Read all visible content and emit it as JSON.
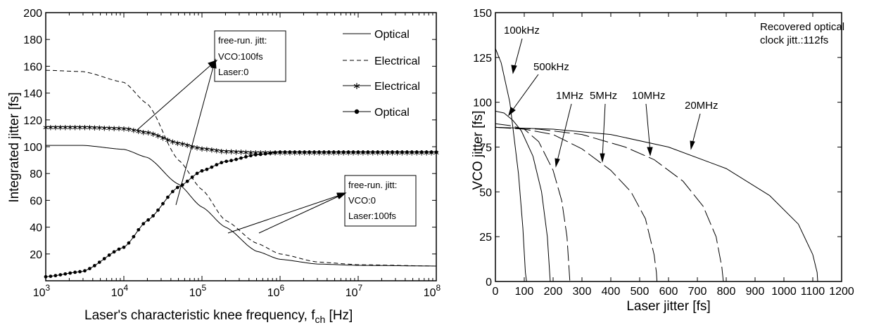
{
  "chart_data": [
    {
      "type": "line",
      "xlabel": "Laser's characteristic knee frequency, f",
      "xlabel_sub": "ch",
      "xlabel_unit": " [Hz]",
      "ylabel": "Integrated jitter [fs]",
      "x_scale": "log",
      "xlim": [
        1000,
        100000000
      ],
      "ylim": [
        0,
        200
      ],
      "x_tick_values": [
        1000,
        10000,
        100000,
        1000000,
        10000000,
        100000000
      ],
      "x_tick_labels": [
        {
          "base": "10",
          "exp": "3"
        },
        {
          "base": "10",
          "exp": "4"
        },
        {
          "base": "10",
          "exp": "5"
        },
        {
          "base": "10",
          "exp": "6"
        },
        {
          "base": "10",
          "exp": "7"
        },
        {
          "base": "10",
          "exp": "8"
        }
      ],
      "y_ticks": [
        20,
        40,
        60,
        80,
        100,
        120,
        140,
        160,
        180,
        200
      ],
      "legend_position": "top-right",
      "series": [
        {
          "name": "Optical",
          "style": "solid",
          "x": [
            1000,
            3000,
            10000,
            20000,
            50000,
            100000,
            200000,
            500000,
            1000000,
            3000000,
            10000000,
            100000000
          ],
          "y": [
            101,
            101,
            98,
            92,
            72,
            55,
            40,
            22,
            16,
            12.5,
            11.5,
            11
          ]
        },
        {
          "name": "Electrical",
          "style": "dashed",
          "x": [
            1000,
            3000,
            10000,
            20000,
            50000,
            100000,
            200000,
            500000,
            1000000,
            3000000,
            10000000,
            100000000
          ],
          "y": [
            157,
            156,
            148,
            132,
            90,
            68,
            45,
            28,
            20,
            14,
            12,
            11
          ]
        },
        {
          "name": "Electrical",
          "style": "solid-star",
          "x": [
            1000,
            3000,
            10000,
            20000,
            50000,
            100000,
            200000,
            500000,
            1000000,
            10000000,
            100000000
          ],
          "y": [
            115,
            115,
            114,
            111,
            103,
            99,
            97,
            96,
            96,
            96,
            96
          ]
        },
        {
          "name": "Optical",
          "style": "solid-dot",
          "x": [
            1000,
            3000,
            10000,
            20000,
            50000,
            100000,
            200000,
            500000,
            1000000,
            10000000,
            100000000
          ],
          "y": [
            3,
            7,
            25,
            45,
            70,
            82,
            89,
            94,
            96,
            96,
            96
          ]
        }
      ],
      "annotations": [
        {
          "lines": [
            "free-run. jitt:",
            "VCO:100fs",
            "Laser:0"
          ]
        },
        {
          "lines": [
            "free-run. jitt:",
            "VCO:0",
            "Laser:100fs"
          ]
        }
      ]
    },
    {
      "type": "line",
      "xlabel": "Laser jitter [fs]",
      "ylabel": "VCO jitter [fs]",
      "xlim": [
        0,
        1200
      ],
      "ylim": [
        0,
        150
      ],
      "x_ticks": [
        0,
        100,
        200,
        300,
        400,
        500,
        600,
        700,
        800,
        900,
        1000,
        1100,
        1200
      ],
      "y_ticks": [
        0,
        25,
        50,
        75,
        100,
        125,
        150
      ],
      "annotation": [
        "Recovered optical",
        "clock jitt.:112fs"
      ],
      "series": [
        {
          "label": "100kHz",
          "style": "solid",
          "x": [
            0,
            20,
            50,
            80,
            95,
            104,
            108
          ],
          "y": [
            130,
            122,
            100,
            60,
            30,
            5,
            0
          ]
        },
        {
          "label": "500kHz",
          "style": "solid",
          "x": [
            0,
            30,
            60,
            90,
            130,
            160,
            180,
            188,
            190
          ],
          "y": [
            95,
            94,
            90,
            84,
            70,
            50,
            25,
            5,
            0
          ]
        },
        {
          "label": "1MHz",
          "style": "dash-long",
          "x": [
            0,
            50,
            100,
            150,
            200,
            230,
            248,
            256,
            258
          ],
          "y": [
            88,
            87,
            85,
            78,
            62,
            45,
            25,
            5,
            0
          ]
        },
        {
          "label": "5MHz",
          "style": "dash-long",
          "x": [
            0,
            100,
            200,
            300,
            400,
            470,
            520,
            550,
            558,
            560
          ],
          "y": [
            86,
            85,
            82,
            74,
            62,
            50,
            35,
            15,
            5,
            0
          ]
        },
        {
          "label": "10MHz",
          "style": "dash-long",
          "x": [
            0,
            150,
            300,
            450,
            550,
            650,
            720,
            765,
            785,
            790
          ],
          "y": [
            86,
            85,
            82,
            75,
            68,
            56,
            42,
            25,
            8,
            0
          ]
        },
        {
          "label": "20MHz",
          "style": "solid",
          "x": [
            0,
            200,
            400,
            600,
            800,
            950,
            1050,
            1100,
            1115,
            1117
          ],
          "y": [
            86,
            85,
            82,
            75,
            63,
            48,
            32,
            15,
            5,
            0
          ]
        }
      ]
    }
  ]
}
